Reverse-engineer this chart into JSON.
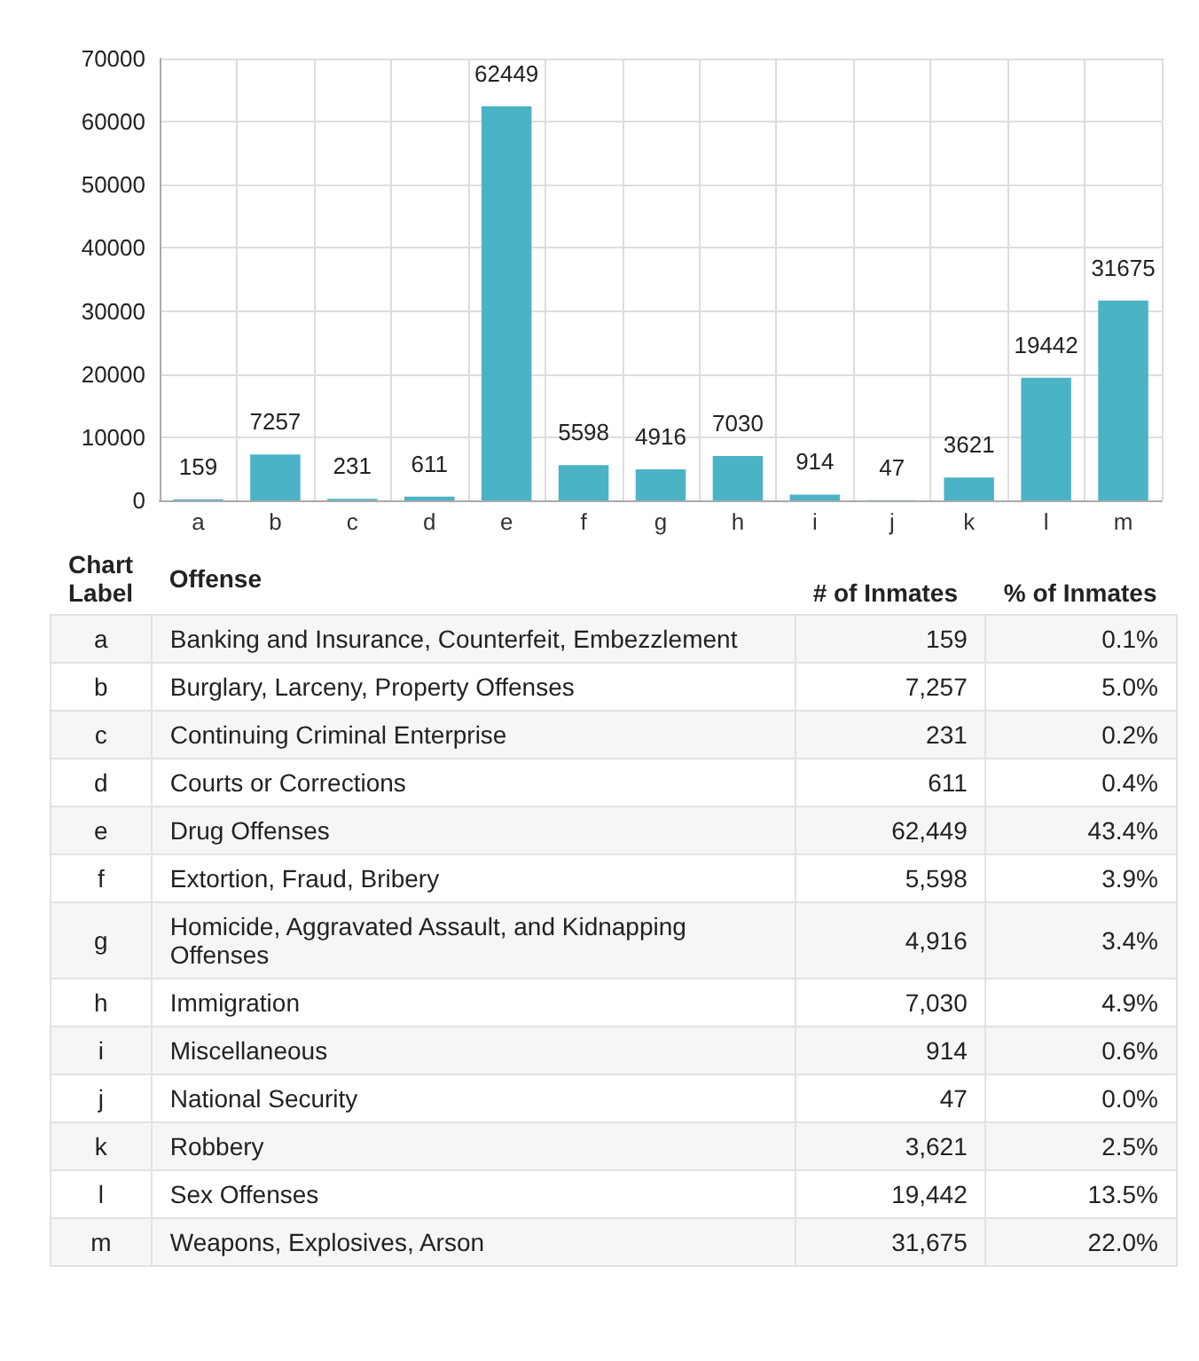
{
  "chart_data": [
    {
      "type": "bar",
      "categories": [
        "a",
        "b",
        "c",
        "d",
        "e",
        "f",
        "g",
        "h",
        "i",
        "j",
        "k",
        "l",
        "m"
      ],
      "values": [
        159,
        7257,
        231,
        611,
        62449,
        5598,
        4916,
        7030,
        914,
        47,
        3621,
        19442,
        31675
      ],
      "color": "#4ab3c6",
      "ylim": [
        0,
        70000
      ],
      "yticks": [
        0,
        10000,
        20000,
        30000,
        40000,
        50000,
        60000,
        70000
      ],
      "grid": true,
      "data_labels": true
    },
    {
      "type": "other",
      "categories": [
        "a",
        "b",
        "c",
        "d",
        "e",
        "f",
        "g",
        "h",
        "i",
        "j",
        "k",
        "l",
        "m"
      ],
      "y_categories": [
        "Banking and Insurance, Counterfeit, Embezzlement",
        "Burglary, Larceny, Property Offenses",
        "Continuing Criminal Enterprise",
        "Courts or Corrections",
        "Drug Offenses",
        "Extortion, Fraud, Bribery",
        "Homicide, Aggravated Assault, and Kidnapping Offenses",
        "Immigration",
        "Miscellaneous",
        "National Security",
        "Robbery",
        "Sex Offenses",
        "Weapons, Explosives, Arson"
      ],
      "series": [
        {
          "name": "# of Inmates",
          "values": [
            159,
            7257,
            231,
            611,
            62449,
            5598,
            4916,
            7030,
            914,
            47,
            3621,
            19442,
            31675
          ],
          "value_labels": [
            "159",
            "7,257",
            "231",
            "611",
            "62,449",
            "5,598",
            "4,916",
            "7,030",
            "914",
            "47",
            "3,621",
            "19,442",
            "31,675"
          ]
        },
        {
          "name": "% of Inmates",
          "values": [
            0.1,
            5.0,
            0.2,
            0.4,
            43.4,
            3.9,
            3.4,
            4.9,
            0.6,
            0.0,
            2.5,
            13.5,
            22.0
          ],
          "value_labels": [
            "0.1%",
            "5.0%",
            "0.2%",
            "0.4%",
            "43.4%",
            "3.9%",
            "3.4%",
            "4.9%",
            "0.6%",
            "0.0%",
            "2.5%",
            "13.5%",
            "22.0%"
          ]
        }
      ],
      "annotations": [
        "Chart Label",
        "Offense"
      ]
    }
  ]
}
